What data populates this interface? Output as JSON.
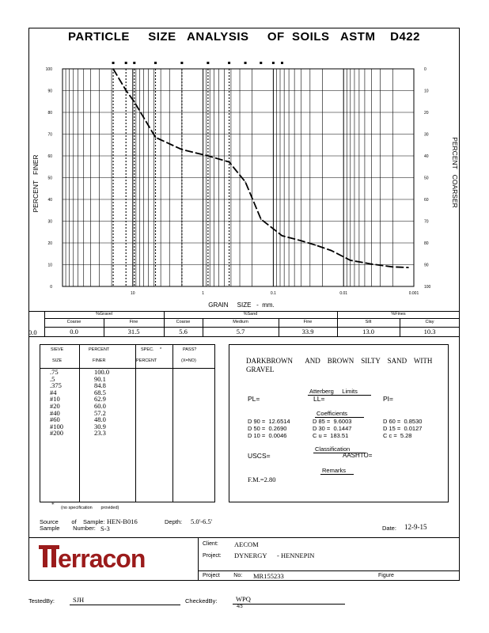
{
  "title": "PARTICLE     SIZE   ANALYSIS     OF  SOILS   ASTM    D422",
  "chart": {
    "ylabel_left": "PERCENT   FINER",
    "ylabel_right": "PERCENT   COARSER",
    "xlabel": "GRAIN     SIZE   -  mm.",
    "left_ticks": [
      "100",
      "90",
      "80",
      "70",
      "60",
      "50",
      "40",
      "30",
      "20",
      "10",
      "0"
    ],
    "right_ticks": [
      "0",
      "10",
      "20",
      "30",
      "40",
      "50",
      "60",
      "70",
      "80",
      "90",
      "100"
    ],
    "x_ticks": [
      "10",
      "1",
      "0.1",
      "0.01",
      "0.001"
    ]
  },
  "chart_data": {
    "type": "line",
    "title": "PARTICLE SIZE ANALYSIS OF SOILS ASTM D422",
    "xlabel": "GRAIN SIZE - mm.",
    "ylabel": "PERCENT FINER",
    "x_scale": "log-reversed",
    "xlim": [
      100,
      0.001
    ],
    "ylim": [
      0,
      100
    ],
    "grid": true,
    "series": [
      {
        "x": [
          19.0,
          12.5,
          9.5,
          4.75,
          2.0,
          0.85,
          0.85,
          0.425,
          0.25,
          0.15,
          0.075,
          0.04,
          0.025,
          0.015,
          0.008,
          0.004,
          0.002,
          0.0012
        ],
        "y": [
          100.0,
          90.1,
          84.8,
          68.5,
          62.9,
          60.0,
          60.0,
          57.2,
          48.0,
          30.9,
          23.3,
          21.0,
          19.0,
          16.5,
          12.0,
          10.3,
          9.0,
          8.7
        ]
      }
    ]
  },
  "fractions": {
    "groups": [
      "%Gravel",
      "%Sand",
      "%Fines"
    ],
    "headers": [
      "Coarse",
      "Fine",
      "Coarse",
      "Medium",
      "Fine",
      "Silt",
      "Clay"
    ],
    "row_prefix": "0.0",
    "values": [
      "0.0",
      "31.5",
      "5.6",
      "5.7",
      "33.9",
      "13.0",
      "10.3"
    ]
  },
  "sieve_table": {
    "headers": {
      "sieve": "SIEVE",
      "sieve2": "SIZE",
      "percent": "PERCENT",
      "percent2": "FINER",
      "spec": "SPEC.",
      "spec_star": "*",
      "spec2": "PERCENT",
      "pass": "PASS?",
      "pass2": "(X=NO)"
    },
    "rows": [
      {
        "size": ".75",
        "finer": "100.0"
      },
      {
        "size": ".5",
        "finer": "90.1"
      },
      {
        "size": ".375",
        "finer": "84.8"
      },
      {
        "size": "#4",
        "finer": "68.5"
      },
      {
        "size": "#10",
        "finer": "62.9"
      },
      {
        "size": "#20",
        "finer": "60.0"
      },
      {
        "size": "#40",
        "finer": "57.2"
      },
      {
        "size": "#60",
        "finer": "48.0"
      },
      {
        "size": "#100",
        "finer": "30.9"
      },
      {
        "size": "#200",
        "finer": "23.3"
      }
    ],
    "footnote_star": "*",
    "footnote": "(no specification       provided)"
  },
  "description": "DARKBROWN       AND    BROWN    SILTY    SAND    WITH\nGRAVEL",
  "atterberg": {
    "heading": "Atterberg     Limits",
    "pl": "PL=",
    "ll": "LL=",
    "pi": "PI="
  },
  "coefficients": {
    "heading": "Coefficients",
    "d90": "D 90 =  12.6514",
    "d50": "D 50 =  0.2690",
    "d10": "D 10 =  0.0046",
    "d85": "D 85 =  9.6003",
    "d30": "D 30 =  0.1447",
    "cu": "C u =  183.51",
    "d60": "D 60 =  0.8530",
    "d15": "D 15 =  0.0127",
    "cc": "C c =  5.28"
  },
  "classification": {
    "heading": "Classification",
    "uscs": "USCS=",
    "aashto": "AASHTO="
  },
  "remarks": {
    "heading": "Remarks",
    "fm": "F.M.=2.80"
  },
  "sample": {
    "source_label": "Source        of    Sample:",
    "sample_label": "Sample        Number:",
    "source_value": "HEN-B016",
    "number_value": "S-3",
    "depth_label": "Depth:",
    "depth_value": "5.0'-6.5'",
    "date_label": "Date:",
    "date_value": "12-9-15"
  },
  "footer": {
    "client_label": "Client:",
    "client_value": "AECOM",
    "project_label": "Project:",
    "project_value": "DYNERGY      - HENNEPIN",
    "projno_label": "Project         No:",
    "projno_value": "MR155233",
    "figure_label": "Figure",
    "logo": "Terracon",
    "tested_label": "TestedBy:",
    "tested_value": "SJH",
    "checked_label": "CheckedBy:",
    "checked_value": "WPQ",
    "checked_sub": "4/3"
  }
}
